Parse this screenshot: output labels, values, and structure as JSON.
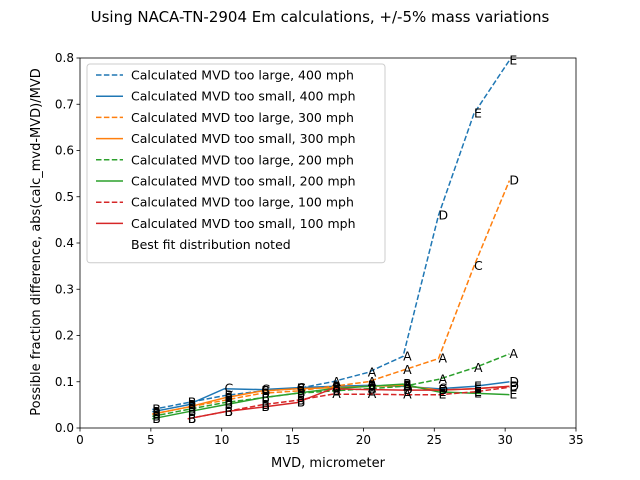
{
  "chart_data": {
    "type": "line",
    "title": "Using NACA-TN-2904 Em calculations, +/-5% mass variations",
    "xlabel": "MVD, micrometer",
    "ylabel": "Possible fraction difference, abs(calc_mvd-MVD)/MVD",
    "xlim": [
      0,
      35
    ],
    "ylim": [
      0,
      0.8
    ],
    "xticks": [
      0,
      5,
      10,
      15,
      20,
      25,
      30,
      35
    ],
    "yticks": [
      0.0,
      0.1,
      0.2,
      0.3,
      0.4,
      0.5,
      0.6,
      0.7,
      0.8
    ],
    "grid": false,
    "legend_position": "upper-left",
    "legend_note": "Best fit distribution noted",
    "series": [
      {
        "name": "Calculated MVD too large, 400 mph",
        "color": "#1f77b4",
        "dash": true,
        "x": [
          5.1,
          7.6,
          10.2,
          12.8,
          15.3,
          17.8,
          20.3,
          22.8,
          25.3,
          27.8,
          30.3
        ],
        "y": [
          0.04,
          0.055,
          0.07,
          0.08,
          0.085,
          0.1,
          0.12,
          0.155,
          0.46,
          0.68,
          0.795
        ],
        "labels": [
          "B",
          "B",
          "B",
          "B",
          "B",
          "A",
          "A",
          "A",
          "D",
          "E",
          "E"
        ]
      },
      {
        "name": "Calculated MVD too small, 400 mph",
        "color": "#1f77b4",
        "dash": false,
        "x": [
          5.1,
          7.6,
          10.2,
          12.8,
          15.3,
          17.8,
          20.3,
          22.8,
          25.3,
          27.8,
          30.3
        ],
        "y": [
          0.035,
          0.05,
          0.085,
          0.083,
          0.087,
          0.09,
          0.092,
          0.09,
          0.085,
          0.09,
          0.1
        ],
        "labels": [
          "B",
          "B",
          "C",
          "C",
          "C",
          "B",
          "B",
          "B",
          "C",
          "E",
          "D"
        ]
      },
      {
        "name": "Calculated MVD too large, 300 mph",
        "color": "#ff7f0e",
        "dash": true,
        "x": [
          5.1,
          7.6,
          10.2,
          12.8,
          15.3,
          17.8,
          20.3,
          22.8,
          25.3,
          27.8,
          30.3
        ],
        "y": [
          0.03,
          0.045,
          0.06,
          0.075,
          0.08,
          0.09,
          0.1,
          0.125,
          0.15,
          0.35,
          0.535
        ],
        "labels": [
          "B",
          "B",
          "B",
          "B",
          "B",
          "A",
          "A",
          "A",
          "A",
          "C",
          "D"
        ]
      },
      {
        "name": "Calculated MVD too small, 300 mph",
        "color": "#ff7f0e",
        "dash": false,
        "x": [
          5.1,
          7.6,
          10.2,
          12.8,
          15.3,
          17.8,
          20.3,
          22.8,
          25.3,
          27.8,
          30.3
        ],
        "y": [
          0.03,
          0.045,
          0.065,
          0.08,
          0.085,
          0.087,
          0.09,
          0.092,
          0.082,
          0.085,
          0.09
        ],
        "labels": [
          "B",
          "B",
          "B",
          "C",
          "C",
          "B",
          "B",
          "B",
          "D",
          "E",
          "D"
        ]
      },
      {
        "name": "Calculated MVD too large, 200 mph",
        "color": "#2ca02c",
        "dash": true,
        "x": [
          5.1,
          7.6,
          10.2,
          12.8,
          15.3,
          17.8,
          20.3,
          22.8,
          25.3,
          27.8,
          30.3
        ],
        "y": [
          0.025,
          0.04,
          0.055,
          0.065,
          0.075,
          0.08,
          0.085,
          0.09,
          0.105,
          0.13,
          0.16
        ],
        "labels": [
          "B",
          "B",
          "B",
          "B",
          "B",
          "B",
          "A",
          "A",
          "A",
          "A",
          "A"
        ]
      },
      {
        "name": "Calculated MVD too small, 200 mph",
        "color": "#2ca02c",
        "dash": false,
        "x": [
          5.1,
          7.6,
          10.2,
          12.8,
          15.3,
          17.8,
          20.3,
          22.8,
          25.3,
          27.8,
          30.3
        ],
        "y": [
          0.02,
          0.035,
          0.05,
          0.065,
          0.075,
          0.085,
          0.09,
          0.095,
          0.078,
          0.075,
          0.072
        ],
        "labels": [
          "B",
          "B",
          "B",
          "B",
          "B",
          "B",
          "B",
          "B",
          "E",
          "E",
          "E"
        ]
      },
      {
        "name": "Calculated MVD too large, 100 mph",
        "color": "#d62728",
        "dash": true,
        "x": [
          7.6,
          10.2,
          12.8,
          15.3,
          17.8,
          20.3,
          22.8,
          25.3,
          27.8,
          30.3
        ],
        "y": [
          0.02,
          0.035,
          0.05,
          0.06,
          0.073,
          0.073,
          0.072,
          0.072,
          0.078,
          0.088
        ],
        "labels": [
          "B",
          "B",
          "B",
          "B",
          "A",
          "A",
          "A",
          "E",
          "E",
          "E"
        ]
      },
      {
        "name": "Calculated MVD too small, 100 mph",
        "color": "#d62728",
        "dash": false,
        "x": [
          7.6,
          10.2,
          12.8,
          15.3,
          17.8,
          20.3,
          22.8,
          25.3,
          27.8,
          30.3
        ],
        "y": [
          0.02,
          0.035,
          0.045,
          0.055,
          0.085,
          0.083,
          0.082,
          0.082,
          0.085,
          0.09
        ],
        "labels": [
          "B",
          "B",
          "B",
          "B",
          "B",
          "B",
          "D",
          "E",
          "E",
          "E"
        ]
      }
    ]
  }
}
